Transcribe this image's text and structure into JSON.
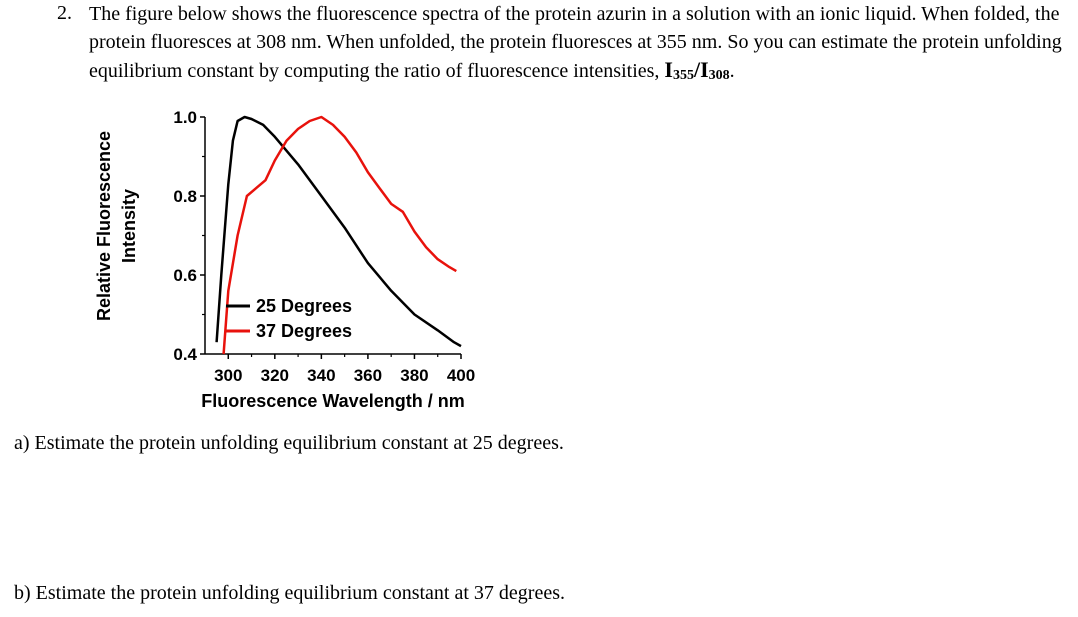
{
  "question": {
    "number": "2.",
    "text": "The figure below shows the fluorescence spectra of the protein azurin in a solution with an ionic liquid. When folded, the protein fluoresces at 308 nm. When unfolded, the protein fluoresces at 355 nm. So you can estimate the protein unfolding equilibrium constant by computing the ratio of fluorescence intensities, ",
    "ratio_main": "I",
    "ratio_sub1": "355",
    "ratio_slash": "/I",
    "ratio_sub2": "308",
    "ratio_end": "."
  },
  "parts": {
    "a": "a) Estimate the protein unfolding equilibrium constant at 25 degrees.",
    "b": "b) Estimate the protein unfolding equilibrium constant at 37 degrees."
  },
  "chart_data": {
    "type": "line",
    "title": "",
    "xlabel": "Fluorescence Wavelength / nm",
    "ylabel": [
      "Relative Fluorescence",
      "Intensity"
    ],
    "xlim": [
      290,
      400
    ],
    "ylim": [
      0.4,
      1.0
    ],
    "x_ticks": [
      300,
      320,
      340,
      360,
      380,
      400
    ],
    "y_ticks": [
      "0.4",
      "0.6",
      "0.8",
      "1.0"
    ],
    "legend_position": "lower-left inside plot",
    "grid": false,
    "series": [
      {
        "name": "25 Degrees",
        "color": "#000000",
        "points": [
          [
            295,
            0.43
          ],
          [
            297,
            0.6
          ],
          [
            300,
            0.83
          ],
          [
            302,
            0.94
          ],
          [
            304,
            0.99
          ],
          [
            307,
            1.0
          ],
          [
            310,
            0.995
          ],
          [
            315,
            0.98
          ],
          [
            320,
            0.95
          ],
          [
            330,
            0.88
          ],
          [
            340,
            0.8
          ],
          [
            350,
            0.72
          ],
          [
            360,
            0.63
          ],
          [
            370,
            0.56
          ],
          [
            380,
            0.5
          ],
          [
            390,
            0.46
          ],
          [
            397,
            0.43
          ],
          [
            400,
            0.42
          ]
        ]
      },
      {
        "name": "37 Degrees",
        "color": "#e8120c",
        "points": [
          [
            298,
            0.4
          ],
          [
            300,
            0.56
          ],
          [
            304,
            0.7
          ],
          [
            308,
            0.8
          ],
          [
            312,
            0.82
          ],
          [
            316,
            0.84
          ],
          [
            320,
            0.89
          ],
          [
            325,
            0.94
          ],
          [
            330,
            0.97
          ],
          [
            335,
            0.99
          ],
          [
            340,
            1.0
          ],
          [
            345,
            0.98
          ],
          [
            350,
            0.95
          ],
          [
            355,
            0.91
          ],
          [
            360,
            0.86
          ],
          [
            365,
            0.82
          ],
          [
            370,
            0.78
          ],
          [
            375,
            0.76
          ],
          [
            380,
            0.71
          ],
          [
            385,
            0.67
          ],
          [
            390,
            0.64
          ],
          [
            395,
            0.62
          ],
          [
            398,
            0.61
          ]
        ]
      }
    ]
  }
}
